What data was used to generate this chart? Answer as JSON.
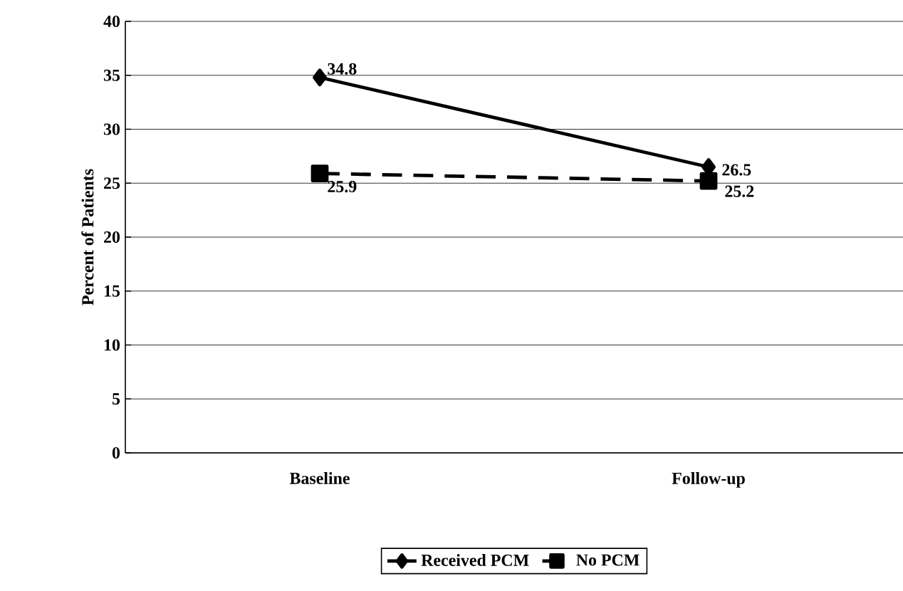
{
  "chart_data": {
    "type": "line",
    "ylabel": "Percent of Patients",
    "categories": [
      "Baseline",
      "Follow-up"
    ],
    "series": [
      {
        "name": "Received PCM",
        "color": "#000000",
        "values": [
          34.8,
          26.5
        ],
        "marker": "diamond",
        "line_style": "solid"
      },
      {
        "name": "No PCM",
        "color": "#000000",
        "values": [
          25.9,
          25.2
        ],
        "marker": "square",
        "line_style": "dashed"
      }
    ],
    "ylim": [
      0,
      40
    ],
    "yticks": [
      0,
      5,
      10,
      15,
      20,
      25,
      30,
      35,
      40
    ],
    "grid": "y",
    "legend": "bottom",
    "data_labels": true
  }
}
